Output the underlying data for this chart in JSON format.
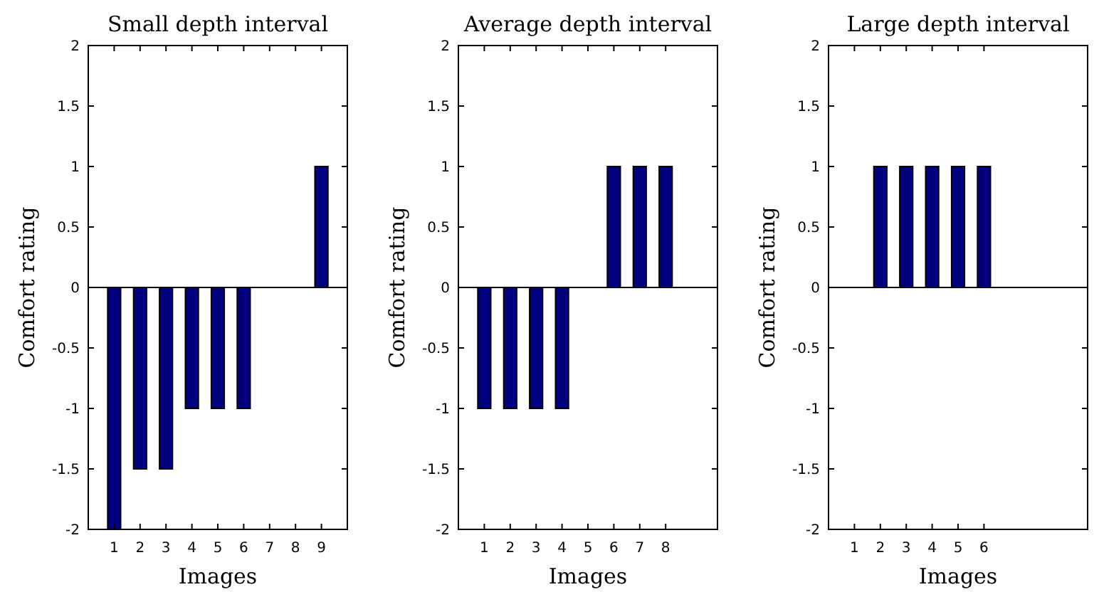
{
  "chart_data": [
    {
      "type": "bar",
      "title": "Small depth interval",
      "xlabel": "Images",
      "ylabel": "Comfort rating",
      "x": [
        1,
        2,
        3,
        4,
        5,
        6,
        7,
        8,
        9
      ],
      "values": [
        -2,
        -1.5,
        -1.5,
        -1,
        -1,
        -1,
        0,
        0,
        1
      ],
      "color": "#000080",
      "xlim": [
        0,
        10
      ],
      "xticks": [
        1,
        2,
        3,
        4,
        5,
        6,
        7,
        8,
        9
      ],
      "ylim": [
        -2,
        2
      ],
      "yticks": [
        -2,
        -1.5,
        -1,
        -0.5,
        0,
        0.5,
        1,
        1.5,
        2
      ]
    },
    {
      "type": "bar",
      "title": "Average depth interval",
      "xlabel": "Images",
      "ylabel": "Comfort rating",
      "x": [
        1,
        2,
        3,
        4,
        5,
        6,
        7,
        8
      ],
      "values": [
        -1,
        -1,
        -1,
        -1,
        0,
        1,
        1,
        1
      ],
      "color": "#000080",
      "xlim": [
        0,
        10
      ],
      "xticks": [
        1,
        2,
        3,
        4,
        5,
        6,
        7,
        8
      ],
      "ylim": [
        -2,
        2
      ],
      "yticks": [
        -2,
        -1.5,
        -1,
        -0.5,
        0,
        0.5,
        1,
        1.5,
        2
      ]
    },
    {
      "type": "bar",
      "title": "Large depth interval",
      "xlabel": "Images",
      "ylabel": "Comfort rating",
      "x": [
        1,
        2,
        3,
        4,
        5,
        6
      ],
      "values": [
        0,
        1,
        1,
        1,
        1,
        1
      ],
      "color": "#000080",
      "xlim": [
        0,
        10
      ],
      "xticks": [
        1,
        2,
        3,
        4,
        5,
        6
      ],
      "ylim": [
        -2,
        2
      ],
      "yticks": [
        -2,
        -1.5,
        -1,
        -0.5,
        0,
        0.5,
        1,
        1.5,
        2
      ]
    }
  ]
}
